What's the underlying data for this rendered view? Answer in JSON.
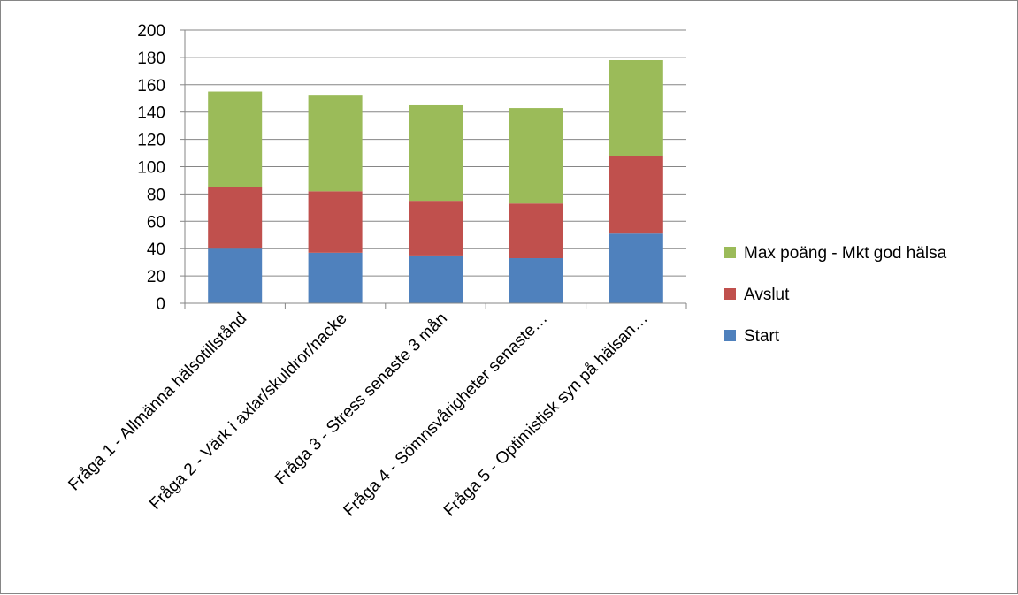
{
  "chart_data": {
    "type": "bar",
    "stacked": true,
    "categories": [
      "Fråga 1 - Allmänna hälsotillstånd",
      "Fråga 2 - Värk i axlar/skuldror/nacke",
      "Fråga 3 - Stress senaste 3 mån",
      "Fråga 4 - Sömnsvårigheter senaste…",
      "Fråga 5 - Optimistisk syn på hälsan…"
    ],
    "series": [
      {
        "name": "Start",
        "color": "#4F81BD",
        "values": [
          40,
          37,
          35,
          33,
          51
        ]
      },
      {
        "name": "Avslut",
        "color": "#C0504D",
        "values": [
          45,
          45,
          40,
          40,
          57
        ]
      },
      {
        "name": "Max poäng - Mkt god hälsa",
        "color": "#9BBB59",
        "values": [
          70,
          70,
          70,
          70,
          70
        ]
      }
    ],
    "ylim": [
      0,
      200
    ],
    "yticks": [
      0,
      20,
      40,
      60,
      80,
      100,
      120,
      140,
      160,
      180,
      200
    ],
    "grid": true,
    "legend_position": "right"
  }
}
